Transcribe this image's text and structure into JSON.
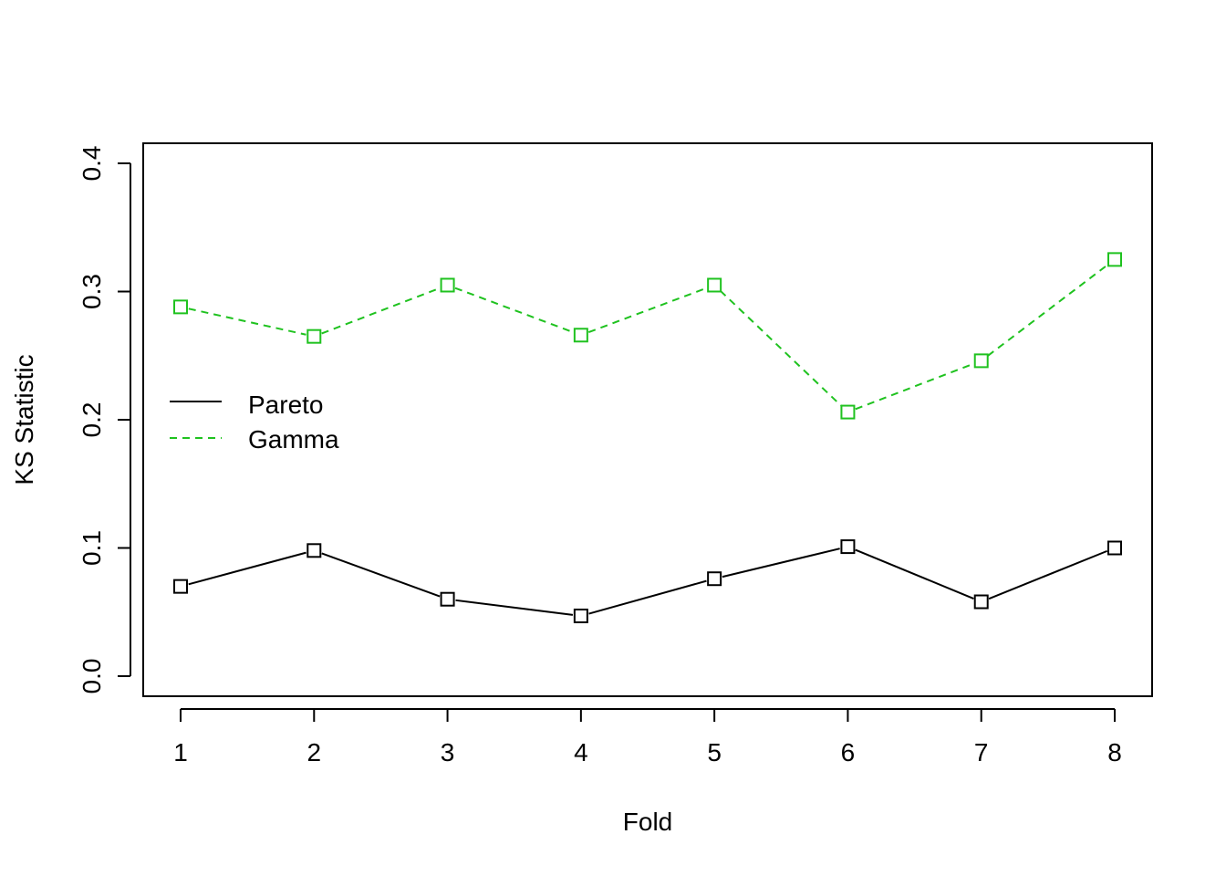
{
  "chart_data": {
    "type": "line",
    "title": "",
    "xlabel": "Fold",
    "ylabel": "KS Statistic",
    "x": [
      1,
      2,
      3,
      4,
      5,
      6,
      7,
      8
    ],
    "x_tick_labels": [
      "1",
      "2",
      "3",
      "4",
      "5",
      "6",
      "7",
      "8"
    ],
    "y_ticks": [
      0.0,
      0.1,
      0.2,
      0.3,
      0.4
    ],
    "y_tick_labels": [
      "0.0",
      "0.1",
      "0.2",
      "0.3",
      "0.4"
    ],
    "xlim": [
      1,
      8
    ],
    "ylim": [
      0.0,
      0.4
    ],
    "grid": false,
    "legend_position": "left",
    "series": [
      {
        "name": "Pareto",
        "values": [
          0.07,
          0.098,
          0.06,
          0.047,
          0.076,
          0.101,
          0.058,
          0.1
        ],
        "color": "#000000",
        "line_style": "solid",
        "marker": "open-square"
      },
      {
        "name": "Gamma",
        "values": [
          0.288,
          0.265,
          0.305,
          0.266,
          0.305,
          0.206,
          0.246,
          0.325
        ],
        "color": "#1fc21f",
        "line_style": "dashed",
        "marker": "open-square"
      }
    ]
  }
}
